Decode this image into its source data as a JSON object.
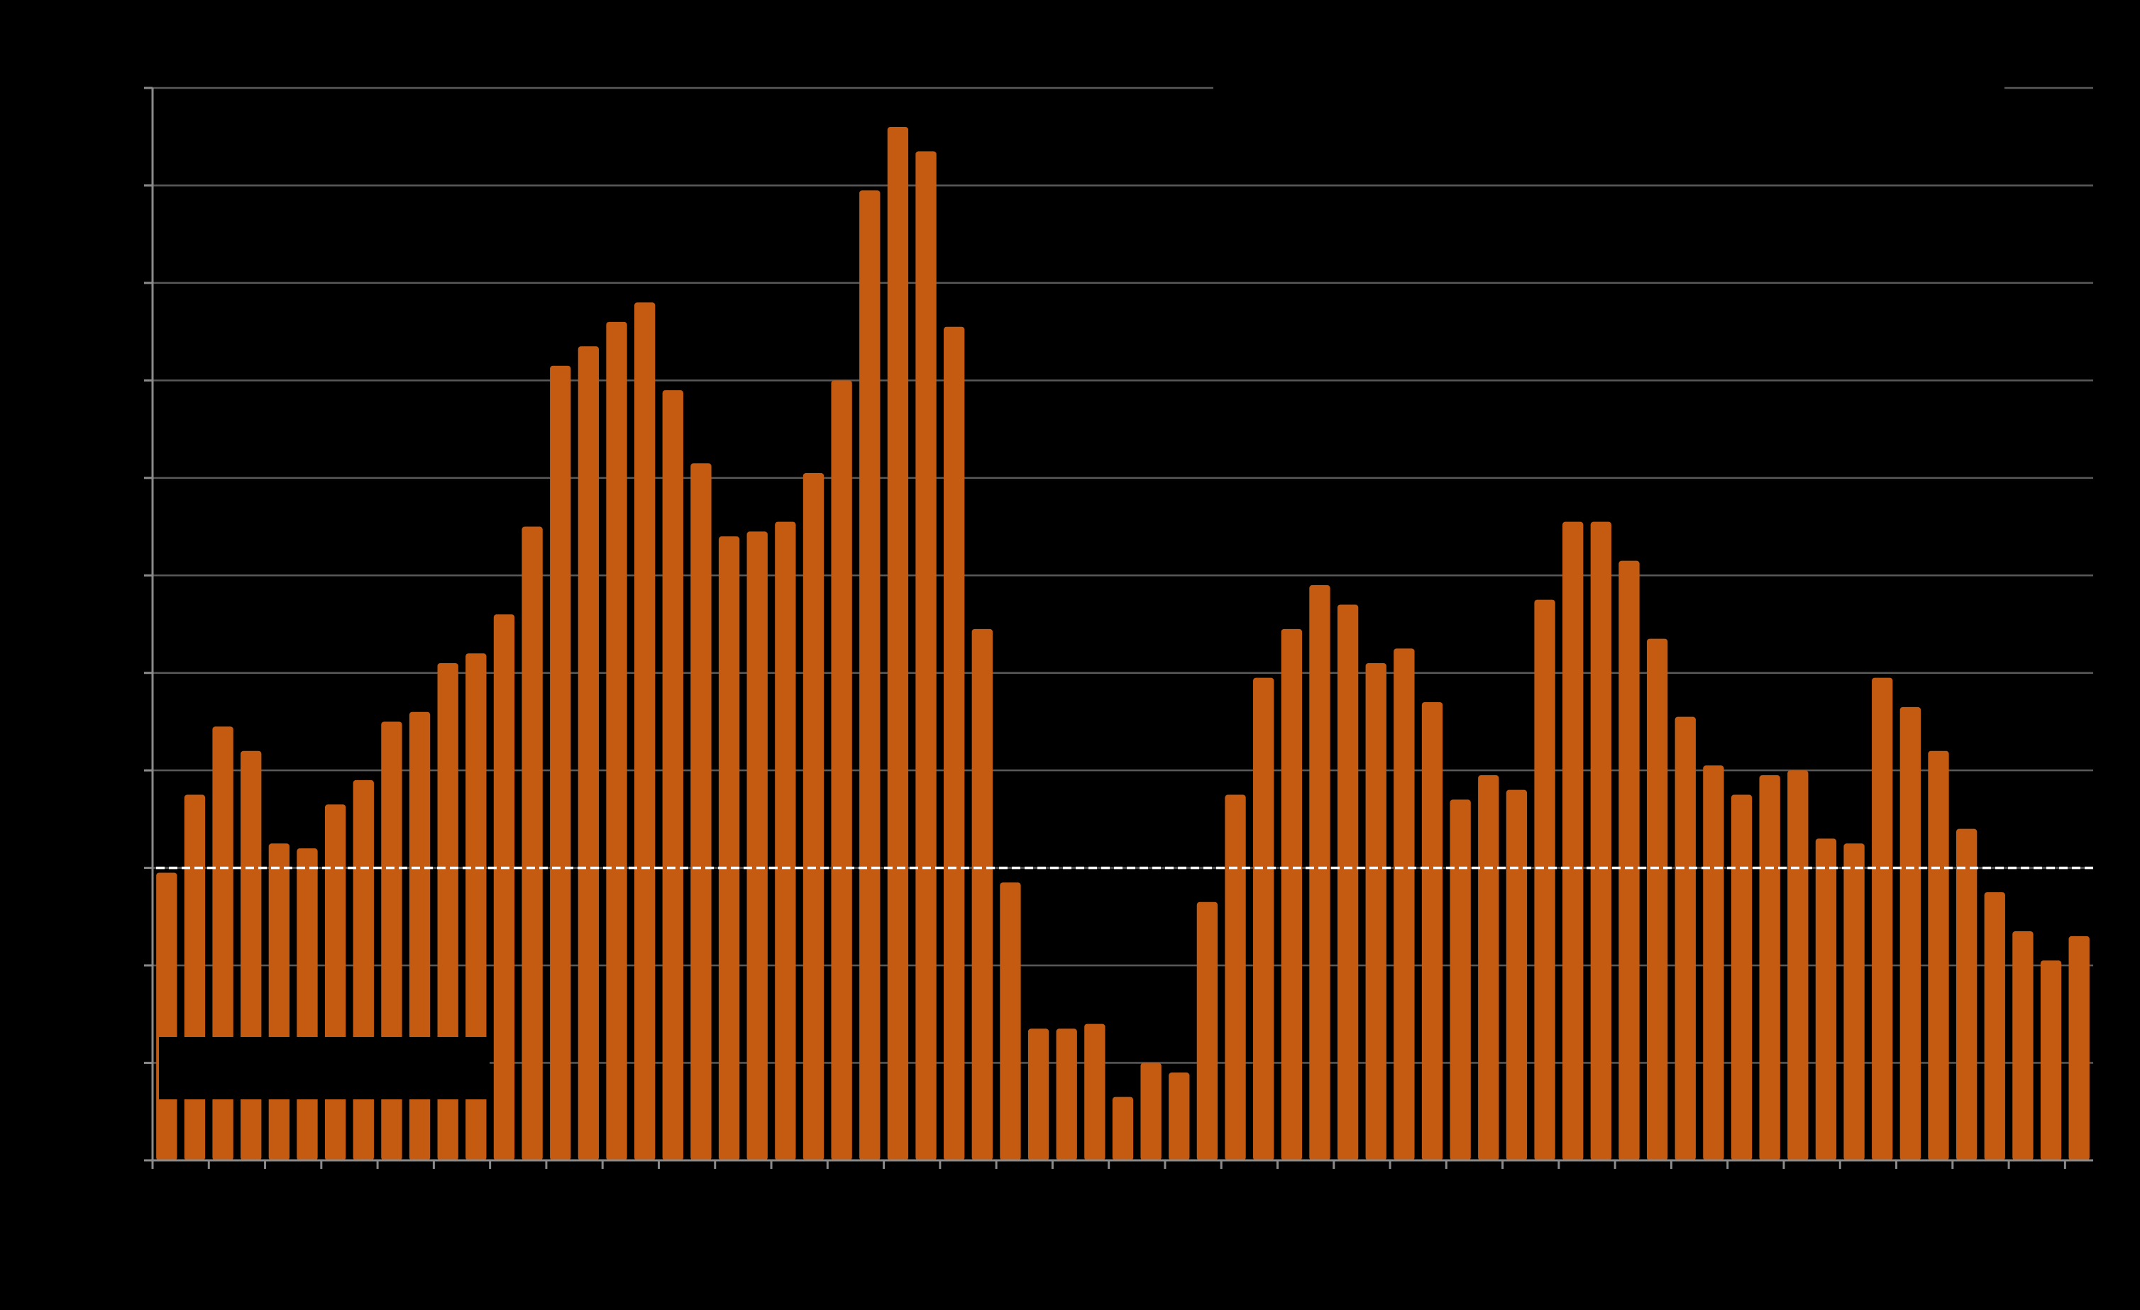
{
  "chart_data": {
    "type": "bar",
    "title": "",
    "xlabel": "",
    "ylabel": "",
    "ylim": [
      0,
      11
    ],
    "grid": true,
    "bar_color": "#c55a11",
    "background": "#000000",
    "reference_line": {
      "value": 3.0,
      "style": "dashed",
      "color": "#ffffff"
    },
    "values": [
      2.95,
      3.75,
      4.45,
      4.2,
      3.25,
      3.2,
      3.65,
      3.9,
      4.5,
      4.6,
      5.1,
      5.2,
      5.6,
      6.5,
      8.15,
      8.35,
      8.6,
      8.8,
      7.9,
      7.15,
      6.4,
      6.45,
      6.55,
      7.05,
      8.0,
      9.95,
      10.6,
      10.35,
      8.55,
      5.45,
      2.85,
      1.35,
      1.35,
      1.4,
      0.65,
      1.0,
      0.9,
      2.65,
      3.75,
      4.95,
      5.45,
      5.9,
      5.7,
      5.1,
      5.25,
      4.7,
      3.7,
      3.95,
      3.8,
      5.75,
      6.55,
      6.55,
      6.15,
      5.35,
      4.55,
      4.05,
      3.75,
      3.95,
      4.0,
      3.3,
      3.25,
      4.95,
      4.65,
      4.2,
      3.4,
      2.75,
      2.35,
      2.05,
      2.3
    ]
  }
}
